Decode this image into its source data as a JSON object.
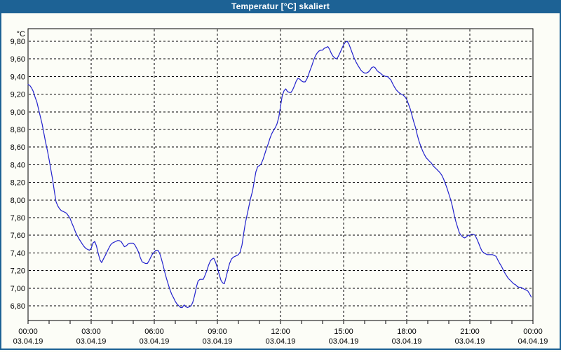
{
  "window": {
    "title": "Temperatur [°C] skaliert"
  },
  "colors": {
    "titlebar_bg": "#1d6295",
    "titlebar_text": "#ffffff",
    "window_border": "#1d6295",
    "background": "#fcfdf7",
    "grid": "#000000",
    "axis": "#000000",
    "text": "#000000",
    "line": "#2121cd"
  },
  "chart_data": {
    "type": "line",
    "title": "Temperatur [°C] skaliert",
    "grid": "dashed",
    "legend": "none",
    "y_axis": {
      "unit": "°C",
      "tick_labels": [
        "9,80",
        "9,60",
        "9,40",
        "9,20",
        "9,00",
        "8,80",
        "8,60",
        "8,40",
        "8,20",
        "8,00",
        "7,80",
        "7,60",
        "7,40",
        "7,20",
        "7,00",
        "6,80"
      ],
      "tick_values": [
        9.8,
        9.6,
        9.4,
        9.2,
        9.0,
        8.8,
        8.6,
        8.4,
        8.2,
        8.0,
        7.8,
        7.6,
        7.4,
        7.2,
        7.0,
        6.8
      ],
      "tick_step": 0.2,
      "range_shown": [
        6.63,
        9.94
      ]
    },
    "x_axis": {
      "range_hours": [
        0,
        24
      ],
      "minor_tick_every_hours": 1,
      "major_tick_every_hours": 3,
      "tick_labels": [
        {
          "hour": 0,
          "time": "00:00",
          "date": "03.04.19"
        },
        {
          "hour": 3,
          "time": "03:00",
          "date": "03.04.19"
        },
        {
          "hour": 6,
          "time": "06:00",
          "date": "03.04.19"
        },
        {
          "hour": 9,
          "time": "09:00",
          "date": "03.04.19"
        },
        {
          "hour": 12,
          "time": "12:00",
          "date": "03.04.19"
        },
        {
          "hour": 15,
          "time": "15:00",
          "date": "03.04.19"
        },
        {
          "hour": 18,
          "time": "18:00",
          "date": "03.04.19"
        },
        {
          "hour": 21,
          "time": "21:00",
          "date": "03.04.19"
        },
        {
          "hour": 24,
          "time": "00:00",
          "date": "04.04.19"
        }
      ]
    },
    "series": [
      {
        "name": "Temperatur",
        "color": "#2121cd",
        "points": [
          [
            0.0,
            9.31
          ],
          [
            0.08,
            9.3
          ],
          [
            0.17,
            9.27
          ],
          [
            0.25,
            9.23
          ],
          [
            0.33,
            9.17
          ],
          [
            0.42,
            9.11
          ],
          [
            0.5,
            9.03
          ],
          [
            0.58,
            8.95
          ],
          [
            0.67,
            8.86
          ],
          [
            0.75,
            8.76
          ],
          [
            0.83,
            8.66
          ],
          [
            0.92,
            8.56
          ],
          [
            1.0,
            8.46
          ],
          [
            1.08,
            8.35
          ],
          [
            1.17,
            8.23
          ],
          [
            1.25,
            8.1
          ],
          [
            1.33,
            7.98
          ],
          [
            1.42,
            7.93
          ],
          [
            1.5,
            7.9
          ],
          [
            1.58,
            7.88
          ],
          [
            1.67,
            7.87
          ],
          [
            1.75,
            7.86
          ],
          [
            1.83,
            7.85
          ],
          [
            1.92,
            7.82
          ],
          [
            2.0,
            7.79
          ],
          [
            2.08,
            7.74
          ],
          [
            2.17,
            7.69
          ],
          [
            2.25,
            7.64
          ],
          [
            2.33,
            7.6
          ],
          [
            2.42,
            7.56
          ],
          [
            2.5,
            7.53
          ],
          [
            2.58,
            7.5
          ],
          [
            2.67,
            7.47
          ],
          [
            2.75,
            7.45
          ],
          [
            2.83,
            7.44
          ],
          [
            2.92,
            7.43
          ],
          [
            3.0,
            7.45
          ],
          [
            3.08,
            7.51
          ],
          [
            3.17,
            7.53
          ],
          [
            3.25,
            7.48
          ],
          [
            3.33,
            7.4
          ],
          [
            3.42,
            7.32
          ],
          [
            3.5,
            7.29
          ],
          [
            3.58,
            7.33
          ],
          [
            3.67,
            7.37
          ],
          [
            3.75,
            7.41
          ],
          [
            3.83,
            7.45
          ],
          [
            3.92,
            7.49
          ],
          [
            4.0,
            7.51
          ],
          [
            4.08,
            7.52
          ],
          [
            4.17,
            7.53
          ],
          [
            4.25,
            7.54
          ],
          [
            4.33,
            7.54
          ],
          [
            4.42,
            7.53
          ],
          [
            4.5,
            7.5
          ],
          [
            4.58,
            7.47
          ],
          [
            4.67,
            7.48
          ],
          [
            4.75,
            7.5
          ],
          [
            4.83,
            7.51
          ],
          [
            4.92,
            7.51
          ],
          [
            5.0,
            7.51
          ],
          [
            5.08,
            7.49
          ],
          [
            5.17,
            7.45
          ],
          [
            5.25,
            7.41
          ],
          [
            5.33,
            7.35
          ],
          [
            5.42,
            7.3
          ],
          [
            5.5,
            7.29
          ],
          [
            5.58,
            7.28
          ],
          [
            5.67,
            7.28
          ],
          [
            5.75,
            7.31
          ],
          [
            5.83,
            7.35
          ],
          [
            5.92,
            7.39
          ],
          [
            6.0,
            7.41
          ],
          [
            6.08,
            7.43
          ],
          [
            6.17,
            7.43
          ],
          [
            6.25,
            7.4
          ],
          [
            6.33,
            7.34
          ],
          [
            6.42,
            7.26
          ],
          [
            6.5,
            7.18
          ],
          [
            6.58,
            7.11
          ],
          [
            6.67,
            7.04
          ],
          [
            6.75,
            6.98
          ],
          [
            6.83,
            6.93
          ],
          [
            6.92,
            6.89
          ],
          [
            7.0,
            6.85
          ],
          [
            7.08,
            6.82
          ],
          [
            7.17,
            6.8
          ],
          [
            7.25,
            6.78
          ],
          [
            7.33,
            6.78
          ],
          [
            7.42,
            6.81
          ],
          [
            7.5,
            6.79
          ],
          [
            7.58,
            6.78
          ],
          [
            7.67,
            6.79
          ],
          [
            7.75,
            6.8
          ],
          [
            7.83,
            6.84
          ],
          [
            7.92,
            6.92
          ],
          [
            8.0,
            7.01
          ],
          [
            8.08,
            7.08
          ],
          [
            8.17,
            7.1
          ],
          [
            8.25,
            7.1
          ],
          [
            8.33,
            7.1
          ],
          [
            8.42,
            7.15
          ],
          [
            8.5,
            7.2
          ],
          [
            8.58,
            7.26
          ],
          [
            8.67,
            7.31
          ],
          [
            8.75,
            7.33
          ],
          [
            8.83,
            7.34
          ],
          [
            8.92,
            7.29
          ],
          [
            9.0,
            7.23
          ],
          [
            9.08,
            7.16
          ],
          [
            9.17,
            7.09
          ],
          [
            9.25,
            7.06
          ],
          [
            9.33,
            7.05
          ],
          [
            9.42,
            7.13
          ],
          [
            9.5,
            7.21
          ],
          [
            9.58,
            7.28
          ],
          [
            9.67,
            7.33
          ],
          [
            9.75,
            7.35
          ],
          [
            9.83,
            7.36
          ],
          [
            9.92,
            7.37
          ],
          [
            10.0,
            7.38
          ],
          [
            10.08,
            7.41
          ],
          [
            10.17,
            7.49
          ],
          [
            10.25,
            7.62
          ],
          [
            10.33,
            7.74
          ],
          [
            10.42,
            7.84
          ],
          [
            10.5,
            7.93
          ],
          [
            10.58,
            8.02
          ],
          [
            10.67,
            8.1
          ],
          [
            10.75,
            8.21
          ],
          [
            10.83,
            8.32
          ],
          [
            10.92,
            8.38
          ],
          [
            11.0,
            8.39
          ],
          [
            11.08,
            8.41
          ],
          [
            11.17,
            8.46
          ],
          [
            11.25,
            8.52
          ],
          [
            11.33,
            8.58
          ],
          [
            11.42,
            8.64
          ],
          [
            11.5,
            8.7
          ],
          [
            11.58,
            8.75
          ],
          [
            11.67,
            8.79
          ],
          [
            11.75,
            8.82
          ],
          [
            11.83,
            8.86
          ],
          [
            11.92,
            8.94
          ],
          [
            12.0,
            9.06
          ],
          [
            12.08,
            9.18
          ],
          [
            12.17,
            9.24
          ],
          [
            12.25,
            9.26
          ],
          [
            12.33,
            9.23
          ],
          [
            12.42,
            9.22
          ],
          [
            12.5,
            9.22
          ],
          [
            12.58,
            9.25
          ],
          [
            12.67,
            9.3
          ],
          [
            12.75,
            9.35
          ],
          [
            12.83,
            9.38
          ],
          [
            12.92,
            9.37
          ],
          [
            13.0,
            9.35
          ],
          [
            13.08,
            9.34
          ],
          [
            13.17,
            9.34
          ],
          [
            13.25,
            9.37
          ],
          [
            13.33,
            9.42
          ],
          [
            13.42,
            9.48
          ],
          [
            13.5,
            9.53
          ],
          [
            13.58,
            9.59
          ],
          [
            13.67,
            9.64
          ],
          [
            13.75,
            9.67
          ],
          [
            13.83,
            9.69
          ],
          [
            13.92,
            9.7
          ],
          [
            14.0,
            9.7
          ],
          [
            14.08,
            9.72
          ],
          [
            14.17,
            9.73
          ],
          [
            14.25,
            9.74
          ],
          [
            14.33,
            9.71
          ],
          [
            14.42,
            9.66
          ],
          [
            14.5,
            9.63
          ],
          [
            14.58,
            9.61
          ],
          [
            14.67,
            9.6
          ],
          [
            14.75,
            9.63
          ],
          [
            14.83,
            9.67
          ],
          [
            14.92,
            9.72
          ],
          [
            15.0,
            9.76
          ],
          [
            15.08,
            9.79
          ],
          [
            15.17,
            9.8
          ],
          [
            15.25,
            9.77
          ],
          [
            15.33,
            9.72
          ],
          [
            15.42,
            9.66
          ],
          [
            15.5,
            9.61
          ],
          [
            15.58,
            9.57
          ],
          [
            15.67,
            9.53
          ],
          [
            15.75,
            9.5
          ],
          [
            15.83,
            9.47
          ],
          [
            15.92,
            9.45
          ],
          [
            16.0,
            9.44
          ],
          [
            16.08,
            9.44
          ],
          [
            16.17,
            9.45
          ],
          [
            16.25,
            9.47
          ],
          [
            16.33,
            9.5
          ],
          [
            16.42,
            9.51
          ],
          [
            16.5,
            9.5
          ],
          [
            16.58,
            9.47
          ],
          [
            16.67,
            9.45
          ],
          [
            16.75,
            9.44
          ],
          [
            16.83,
            9.42
          ],
          [
            16.92,
            9.41
          ],
          [
            17.0,
            9.4
          ],
          [
            17.08,
            9.4
          ],
          [
            17.17,
            9.38
          ],
          [
            17.25,
            9.36
          ],
          [
            17.33,
            9.32
          ],
          [
            17.42,
            9.28
          ],
          [
            17.5,
            9.25
          ],
          [
            17.58,
            9.23
          ],
          [
            17.67,
            9.21
          ],
          [
            17.75,
            9.2
          ],
          [
            17.83,
            9.19
          ],
          [
            17.92,
            9.17
          ],
          [
            18.0,
            9.14
          ],
          [
            18.08,
            9.09
          ],
          [
            18.17,
            9.03
          ],
          [
            18.25,
            8.96
          ],
          [
            18.33,
            8.89
          ],
          [
            18.42,
            8.82
          ],
          [
            18.5,
            8.74
          ],
          [
            18.58,
            8.67
          ],
          [
            18.67,
            8.61
          ],
          [
            18.75,
            8.56
          ],
          [
            18.83,
            8.52
          ],
          [
            18.92,
            8.48
          ],
          [
            19.0,
            8.46
          ],
          [
            19.08,
            8.44
          ],
          [
            19.17,
            8.42
          ],
          [
            19.25,
            8.39
          ],
          [
            19.33,
            8.37
          ],
          [
            19.42,
            8.35
          ],
          [
            19.5,
            8.33
          ],
          [
            19.58,
            8.31
          ],
          [
            19.67,
            8.28
          ],
          [
            19.75,
            8.24
          ],
          [
            19.83,
            8.19
          ],
          [
            19.92,
            8.13
          ],
          [
            20.0,
            8.07
          ],
          [
            20.08,
            8.01
          ],
          [
            20.17,
            7.93
          ],
          [
            20.25,
            7.84
          ],
          [
            20.33,
            7.76
          ],
          [
            20.42,
            7.69
          ],
          [
            20.5,
            7.63
          ],
          [
            20.58,
            7.6
          ],
          [
            20.67,
            7.58
          ],
          [
            20.75,
            7.57
          ],
          [
            20.83,
            7.58
          ],
          [
            20.92,
            7.6
          ],
          [
            21.0,
            7.6
          ],
          [
            21.08,
            7.61
          ],
          [
            21.17,
            7.61
          ],
          [
            21.25,
            7.6
          ],
          [
            21.33,
            7.56
          ],
          [
            21.42,
            7.51
          ],
          [
            21.5,
            7.46
          ],
          [
            21.58,
            7.42
          ],
          [
            21.67,
            7.4
          ],
          [
            21.75,
            7.39
          ],
          [
            21.83,
            7.38
          ],
          [
            21.92,
            7.38
          ],
          [
            22.0,
            7.38
          ],
          [
            22.08,
            7.38
          ],
          [
            22.17,
            7.37
          ],
          [
            22.25,
            7.36
          ],
          [
            22.33,
            7.32
          ],
          [
            22.42,
            7.28
          ],
          [
            22.5,
            7.25
          ],
          [
            22.58,
            7.21
          ],
          [
            22.67,
            7.17
          ],
          [
            22.75,
            7.14
          ],
          [
            22.83,
            7.11
          ],
          [
            22.92,
            7.09
          ],
          [
            23.0,
            7.07
          ],
          [
            23.08,
            7.05
          ],
          [
            23.17,
            7.04
          ],
          [
            23.25,
            7.02
          ],
          [
            23.33,
            7.01
          ],
          [
            23.42,
            7.01
          ],
          [
            23.5,
            7.0
          ],
          [
            23.58,
            6.99
          ],
          [
            23.67,
            6.98
          ],
          [
            23.75,
            6.97
          ],
          [
            23.83,
            6.94
          ],
          [
            23.92,
            6.9
          ]
        ]
      }
    ]
  }
}
